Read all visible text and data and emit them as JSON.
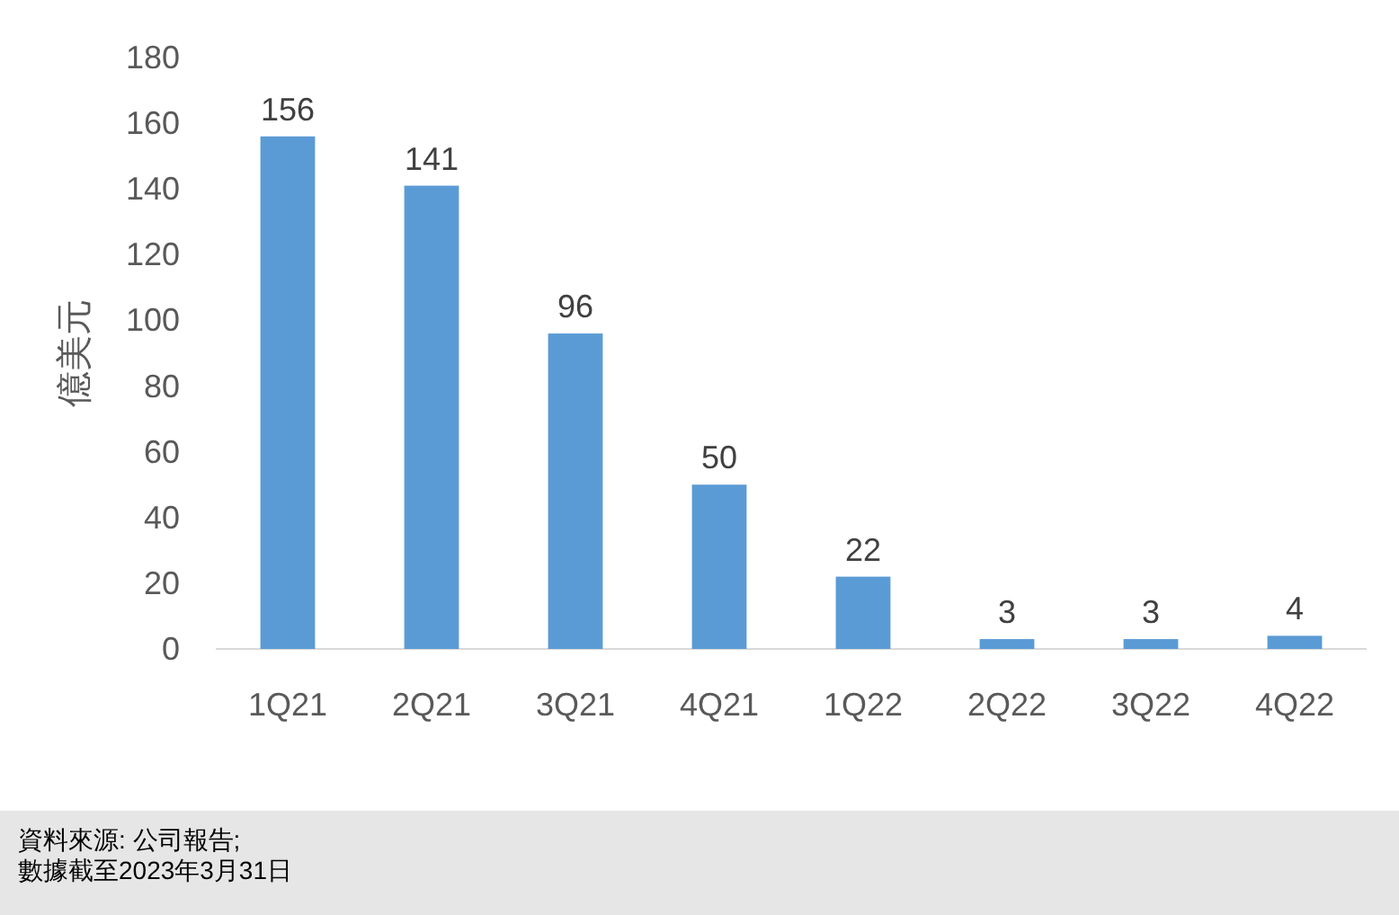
{
  "chart_data": {
    "type": "bar",
    "ylabel": "億美元",
    "categories": [
      "1Q21",
      "2Q21",
      "3Q21",
      "4Q21",
      "1Q22",
      "2Q22",
      "3Q22",
      "4Q22"
    ],
    "values": [
      156,
      141,
      96,
      50,
      22,
      3,
      3,
      4
    ],
    "color": "#5b9bd5",
    "ylim": [
      0,
      180
    ],
    "yticks": [
      0,
      20,
      40,
      60,
      80,
      100,
      120,
      140,
      160,
      180
    ],
    "data_labels": true,
    "grid": false,
    "annotations": [
      "資料來源: 公司報告;",
      "數據截至2023年3月31日"
    ]
  }
}
